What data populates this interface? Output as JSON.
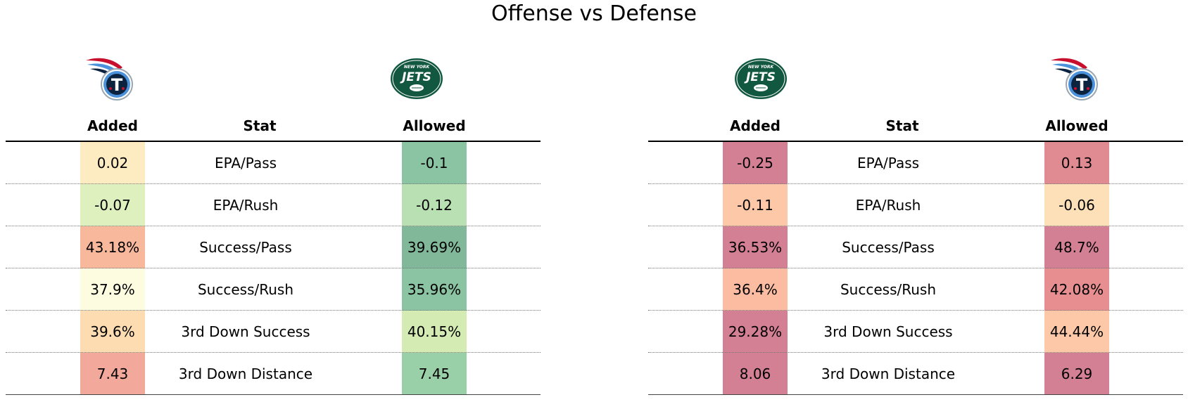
{
  "page": {
    "title": "Offense vs Defense"
  },
  "chart_data": [
    {
      "type": "table",
      "teams": {
        "added": "Tennessee Titans",
        "allowed": "New York Jets"
      },
      "logo_text": {
        "jets_top": "NEW YORK",
        "jets_main": "JETS",
        "titans_letter": "T"
      },
      "columns": [
        "Added",
        "Stat",
        "Allowed"
      ],
      "rows": [
        {
          "added": "0.02",
          "stat": "EPA/Pass",
          "allowed": "-0.1",
          "added_color": "#fdebc2",
          "allowed_color": "#8bc4a2"
        },
        {
          "added": "-0.07",
          "stat": "EPA/Rush",
          "allowed": "-0.12",
          "added_color": "#dff0bf",
          "allowed_color": "#b9e0b2"
        },
        {
          "added": "43.18%",
          "stat": "Success/Pass",
          "allowed": "39.69%",
          "added_color": "#f8b89c",
          "allowed_color": "#82b89a"
        },
        {
          "added": "37.9%",
          "stat": "Success/Rush",
          "allowed": "35.96%",
          "added_color": "#fefce0",
          "allowed_color": "#8bc4a2"
        },
        {
          "added": "39.6%",
          "stat": "3rd Down Success",
          "allowed": "40.15%",
          "added_color": "#fddcb2",
          "allowed_color": "#d4ebb4"
        },
        {
          "added": "7.43",
          "stat": "3rd Down Distance",
          "allowed": "7.45",
          "added_color": "#f2a99b",
          "allowed_color": "#9ad0a8"
        }
      ]
    },
    {
      "type": "table",
      "teams": {
        "added": "New York Jets",
        "allowed": "Tennessee Titans"
      },
      "logo_text": {
        "jets_top": "NEW YORK",
        "jets_main": "JETS",
        "titans_letter": "T"
      },
      "columns": [
        "Added",
        "Stat",
        "Allowed"
      ],
      "rows": [
        {
          "added": "-0.25",
          "stat": "EPA/Pass",
          "allowed": "0.13",
          "added_color": "#d37f94",
          "allowed_color": "#e08b91"
        },
        {
          "added": "-0.11",
          "stat": "EPA/Rush",
          "allowed": "-0.06",
          "added_color": "#fcc8a8",
          "allowed_color": "#fde0b8"
        },
        {
          "added": "36.53%",
          "stat": "Success/Pass",
          "allowed": "48.7%",
          "added_color": "#d37f94",
          "allowed_color": "#d37f94"
        },
        {
          "added": "36.4%",
          "stat": "Success/Rush",
          "allowed": "42.08%",
          "added_color": "#fcbca1",
          "allowed_color": "#e68e90"
        },
        {
          "added": "29.28%",
          "stat": "3rd Down Success",
          "allowed": "44.44%",
          "added_color": "#d37f94",
          "allowed_color": "#fcc8a8"
        },
        {
          "added": "8.06",
          "stat": "3rd Down Distance",
          "allowed": "6.29",
          "added_color": "#d37f94",
          "allowed_color": "#d37f94"
        }
      ]
    }
  ]
}
